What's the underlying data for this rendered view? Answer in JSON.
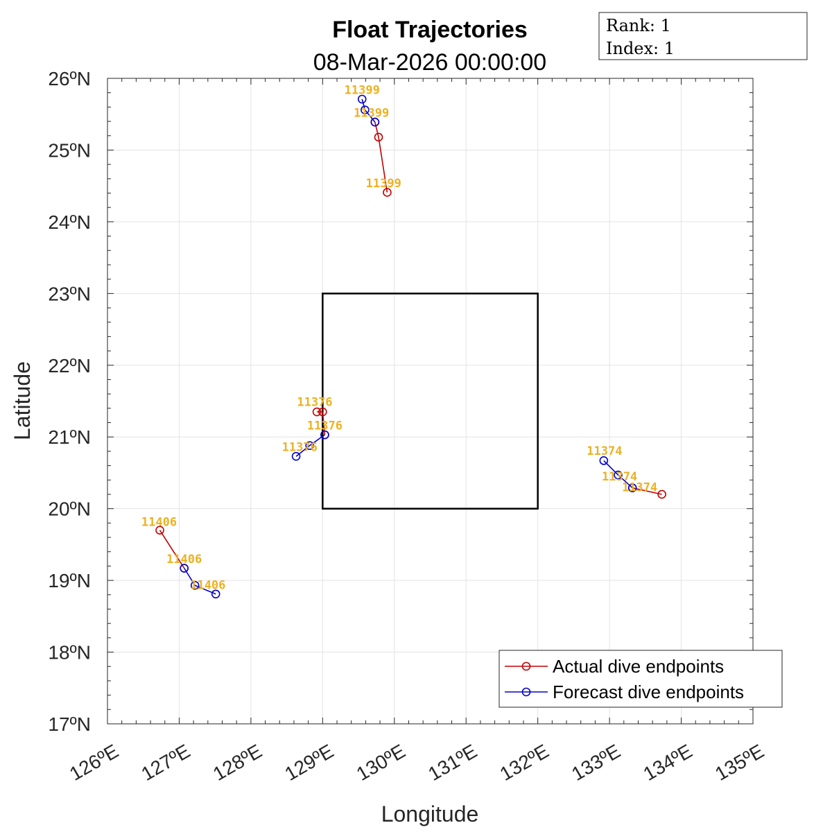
{
  "chart_data": {
    "type": "line",
    "title": "Float Trajectories",
    "subtitle": "08-Mar-2026 00:00:00",
    "xlabel": "Longitude",
    "ylabel": "Latitude",
    "xlim": [
      126,
      135
    ],
    "ylim": [
      17,
      26
    ],
    "xticks": [
      126,
      127,
      128,
      129,
      130,
      131,
      132,
      133,
      134,
      135
    ],
    "yticks": [
      17,
      18,
      19,
      20,
      21,
      22,
      23,
      24,
      25,
      26
    ],
    "xtick_labels": [
      "126ºE",
      "127ºE",
      "128ºE",
      "129ºE",
      "130ºE",
      "131ºE",
      "132ºE",
      "133ºE",
      "134ºE",
      "135ºE"
    ],
    "ytick_labels": [
      "17ºN",
      "18ºN",
      "19ºN",
      "20ºN",
      "21ºN",
      "22ºN",
      "23ºN",
      "24ºN",
      "25ºN",
      "26ºN"
    ],
    "grid": true,
    "legend_position": "bottom-right",
    "info_box": {
      "rank": "Rank:  1",
      "index": "Index:  1"
    },
    "target_box": {
      "lon": [
        129,
        132
      ],
      "lat": [
        20,
        23
      ]
    },
    "series": [
      {
        "name": "Actual dive endpoints",
        "color": "#C00000",
        "tracks": [
          {
            "float": "11399",
            "points": [
              [
                129.9,
                24.41
              ],
              [
                129.78,
                25.18
              ],
              [
                129.73,
                25.39
              ]
            ]
          },
          {
            "float": "11376",
            "points": [
              [
                128.92,
                21.35
              ],
              [
                129.0,
                21.35
              ],
              [
                129.03,
                21.03
              ]
            ]
          },
          {
            "float": "11374",
            "points": [
              [
                133.73,
                20.2
              ],
              [
                133.32,
                20.29
              ]
            ]
          },
          {
            "float": "11406",
            "points": [
              [
                126.73,
                19.7
              ],
              [
                127.07,
                19.17
              ]
            ]
          }
        ]
      },
      {
        "name": "Forecast dive endpoints",
        "color": "#0000CC",
        "tracks": [
          {
            "float": "11399",
            "points": [
              [
                129.73,
                25.39
              ],
              [
                129.59,
                25.56
              ],
              [
                129.55,
                25.71
              ]
            ]
          },
          {
            "float": "11376",
            "points": [
              [
                129.03,
                21.03
              ],
              [
                128.82,
                20.88
              ],
              [
                128.63,
                20.73
              ]
            ]
          },
          {
            "float": "11374",
            "points": [
              [
                133.32,
                20.29
              ],
              [
                133.12,
                20.47
              ],
              [
                132.92,
                20.67
              ]
            ]
          },
          {
            "float": "11406",
            "points": [
              [
                127.07,
                19.17
              ],
              [
                127.22,
                18.93
              ],
              [
                127.51,
                18.81
              ]
            ]
          }
        ]
      }
    ],
    "labels": [
      {
        "text": "11399",
        "lon": 129.55,
        "lat": 25.84
      },
      {
        "text": "11399",
        "lon": 129.68,
        "lat": 25.52
      },
      {
        "text": "11399",
        "lon": 129.85,
        "lat": 24.54
      },
      {
        "text": "11376",
        "lon": 128.89,
        "lat": 21.49
      },
      {
        "text": "11376",
        "lon": 129.03,
        "lat": 21.16
      },
      {
        "text": "11376",
        "lon": 128.68,
        "lat": 20.86
      },
      {
        "text": "11374",
        "lon": 132.93,
        "lat": 20.81
      },
      {
        "text": "11374",
        "lon": 133.14,
        "lat": 20.45
      },
      {
        "text": "11374",
        "lon": 133.42,
        "lat": 20.3
      },
      {
        "text": "11406",
        "lon": 126.72,
        "lat": 19.82
      },
      {
        "text": "11406",
        "lon": 127.07,
        "lat": 19.3
      },
      {
        "text": "11406",
        "lon": 127.4,
        "lat": 18.94
      }
    ]
  }
}
